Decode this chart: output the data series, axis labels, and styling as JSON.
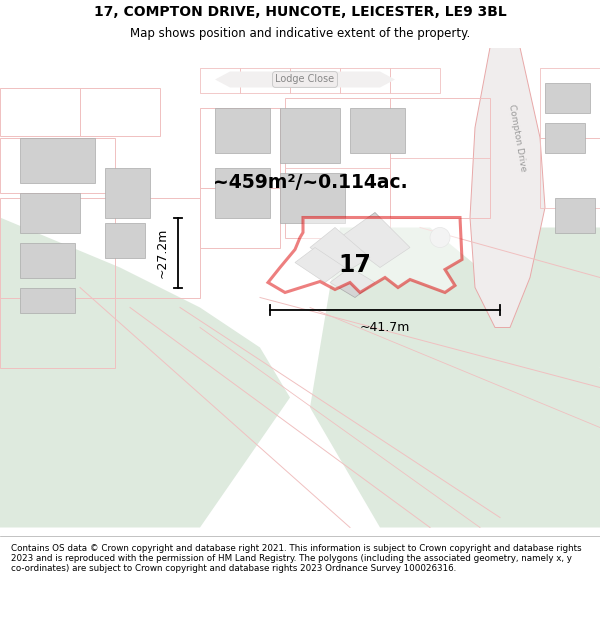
{
  "title": "17, COMPTON DRIVE, HUNCOTE, LEICESTER, LE9 3BL",
  "subtitle": "Map shows position and indicative extent of the property.",
  "footer": "Contains OS data © Crown copyright and database right 2021. This information is subject to Crown copyright and database rights 2023 and is reproduced with the permission of HM Land Registry. The polygons (including the associated geometry, namely x, y co-ordinates) are subject to Crown copyright and database rights 2023 Ordnance Survey 100026316.",
  "area_label": "~459m²/~0.114ac.",
  "number_label": "17",
  "width_label": "~41.7m",
  "height_label": "~27.2m",
  "road_color": "#f0c0c0",
  "road_color2": "#e8a8a8",
  "plot_outline_color": "#dd0000",
  "building_color": "#d0d0d0",
  "building_edge": "#aaaaaa",
  "map_bg": "#f8f8f6",
  "green_area": "#deeade",
  "white_area": "#ffffff",
  "title_fs": 10,
  "subtitle_fs": 8.5,
  "footer_fs": 6.3
}
